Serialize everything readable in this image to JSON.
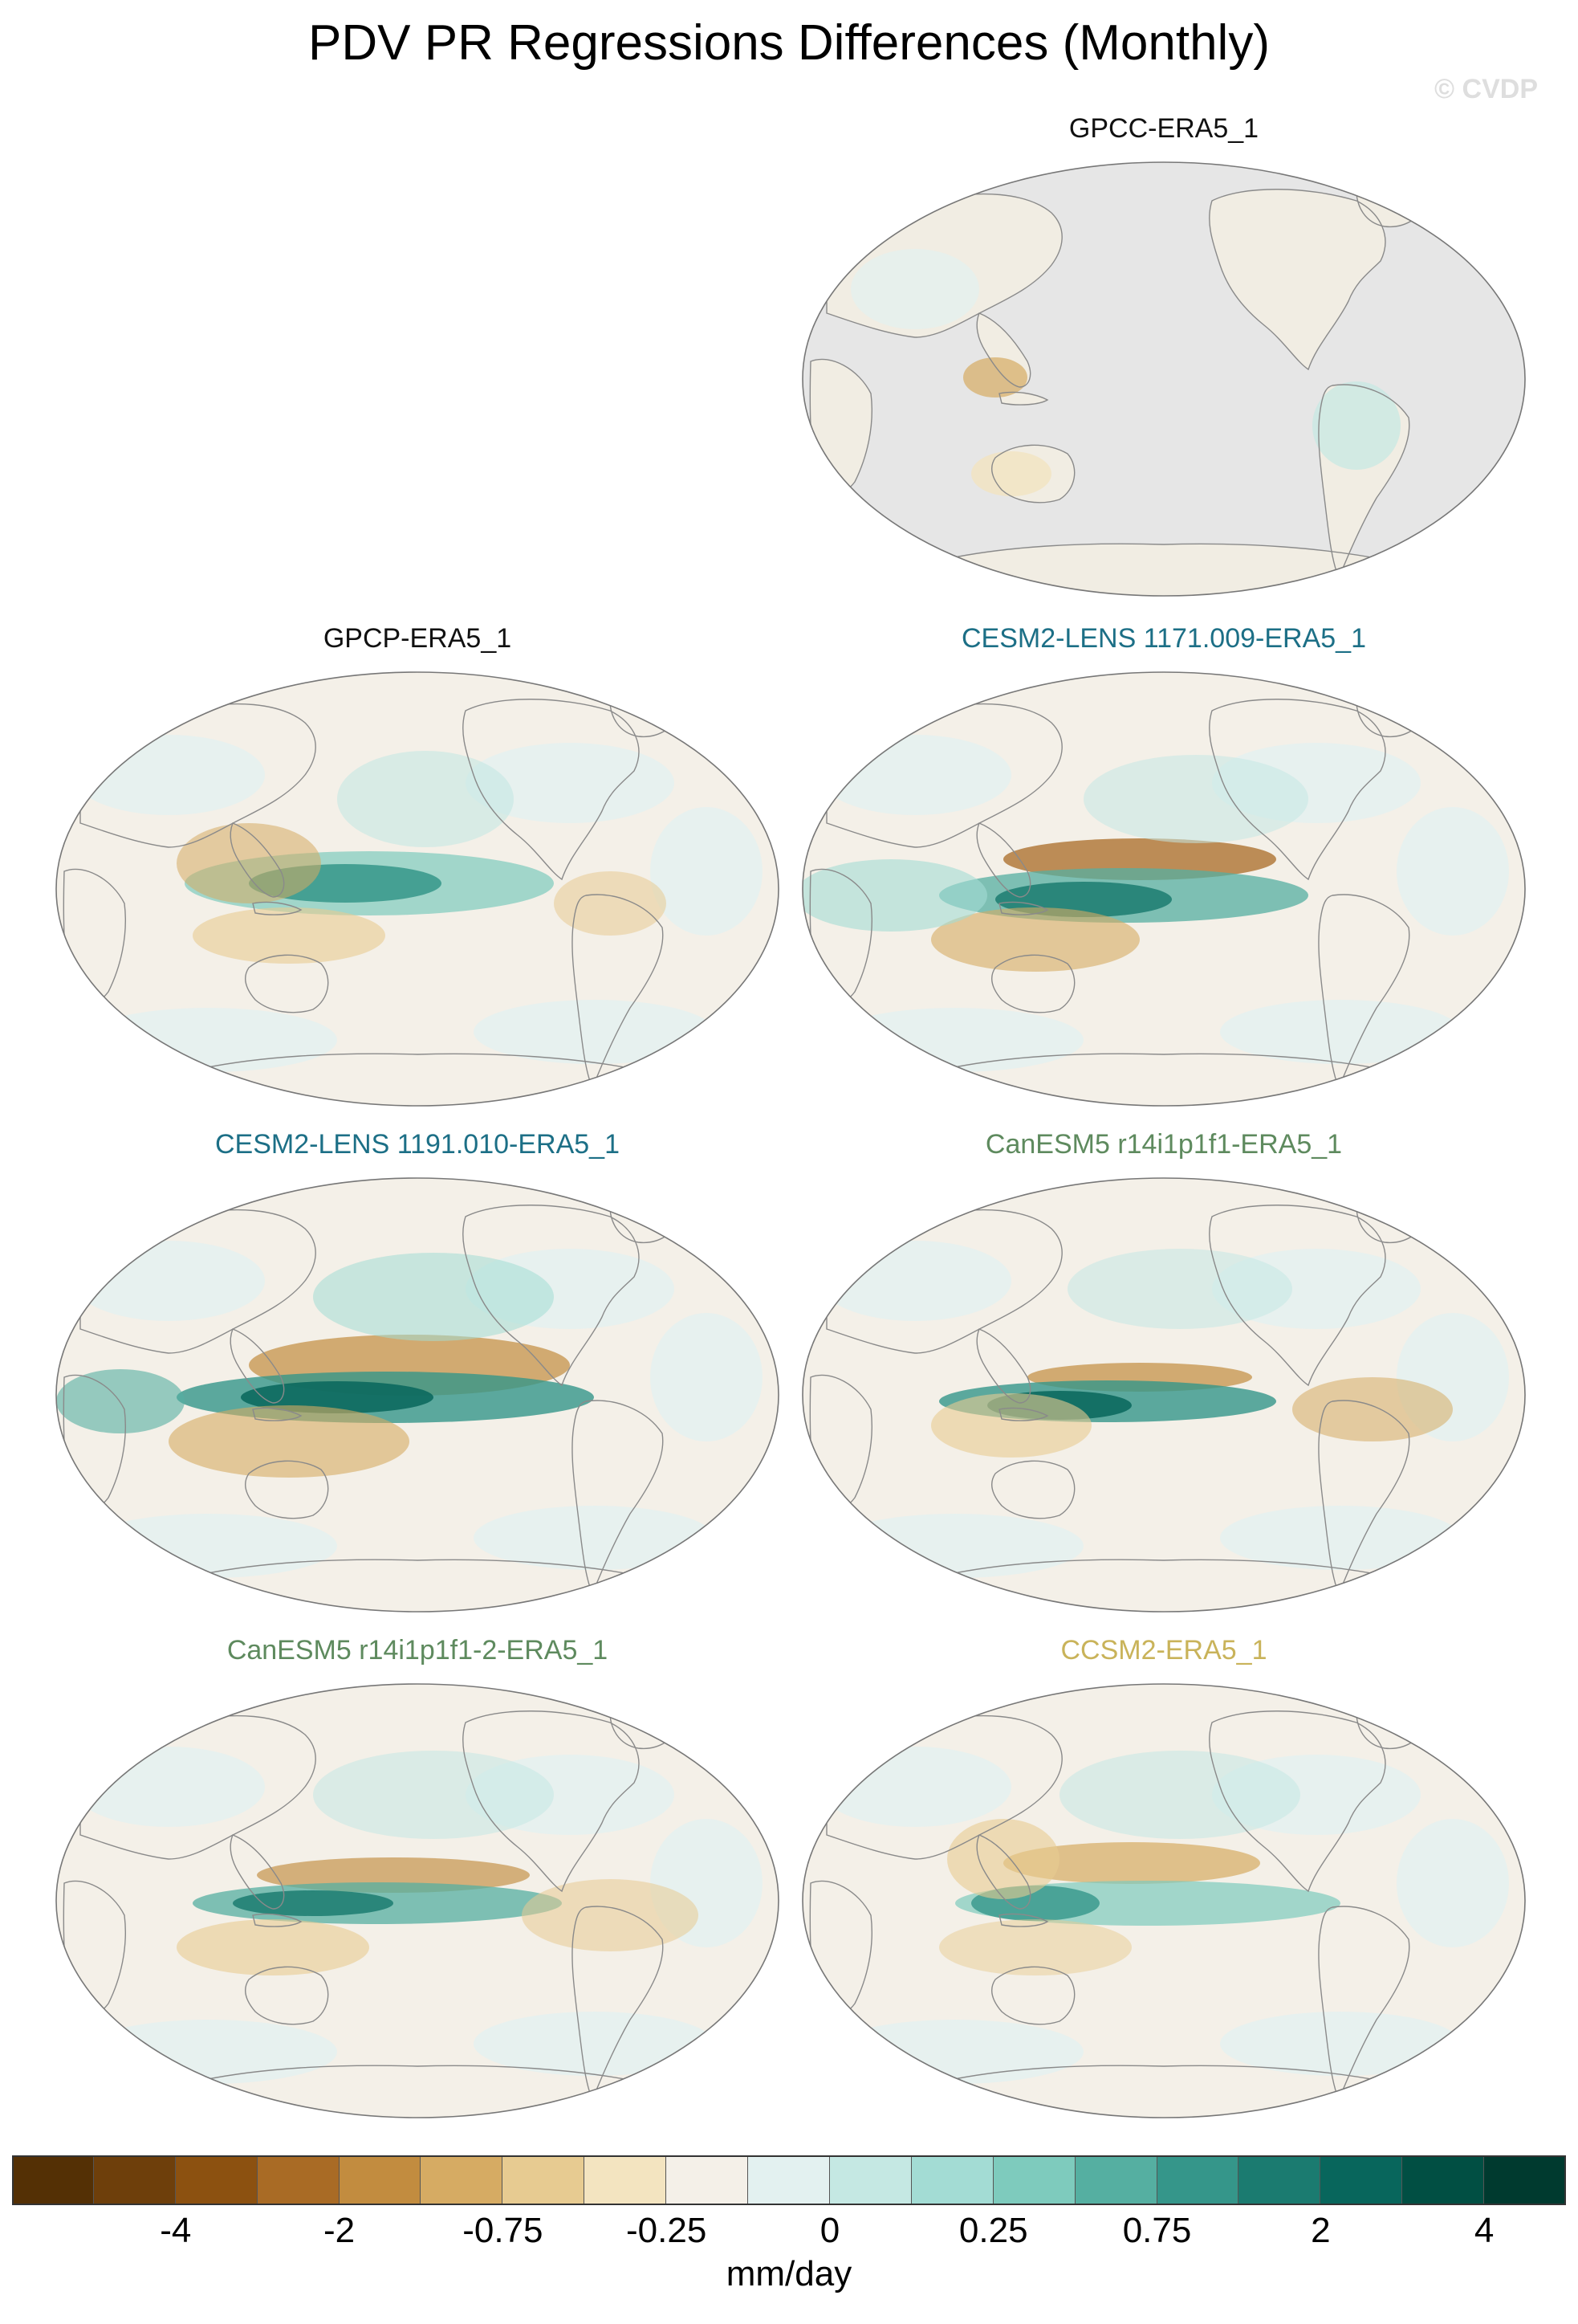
{
  "figure": {
    "title": "PDV PR Regressions Differences (Monthly)",
    "copyright": "© CVDP"
  },
  "panels": [
    {
      "id": "gpcc",
      "label": "GPCC-ERA5_1",
      "label_color": "#111111",
      "landonly": true
    },
    {
      "id": "gpcp",
      "label": "GPCP-ERA5_1",
      "label_color": "#111111",
      "landonly": false
    },
    {
      "id": "cesm1",
      "label": "CESM2-LENS 1171.009-ERA5_1",
      "label_color": "#1c6f86",
      "landonly": false
    },
    {
      "id": "cesm2",
      "label": "CESM2-LENS 1191.010-ERA5_1",
      "label_color": "#1c6f86",
      "landonly": false
    },
    {
      "id": "can1",
      "label": "CanESM5 r14i1p1f1-ERA5_1",
      "label_color": "#5e8a5e",
      "landonly": false
    },
    {
      "id": "can2",
      "label": "CanESM5 r14i1p1f1-2-ERA5_1",
      "label_color": "#5e8a5e",
      "landonly": false
    },
    {
      "id": "ccsm",
      "label": "CCSM2-ERA5_1",
      "label_color": "#c9b35a",
      "landonly": false
    }
  ],
  "colorbar": {
    "units": "mm/day",
    "colors": [
      "#543005",
      "#6e3f0b",
      "#8c5110",
      "#a96b25",
      "#c28c3f",
      "#d6ab63",
      "#e7cb91",
      "#f3e4c0",
      "#f4f0e8",
      "#e3f1f0",
      "#c5e8e3",
      "#a3dcd4",
      "#7ecbbd",
      "#55afa1",
      "#35968a",
      "#1b7b70",
      "#08665c",
      "#014f43",
      "#003a2f"
    ],
    "tick_labels": [
      "-4",
      "-2",
      "-0.75",
      "-0.25",
      "0",
      "0.25",
      "0.75",
      "2",
      "4"
    ]
  }
}
